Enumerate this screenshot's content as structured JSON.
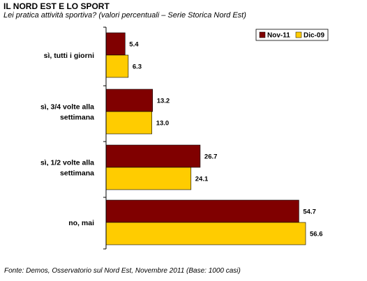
{
  "header": {
    "title": "IL NORD EST E LO SPORT",
    "subtitle": "Lei pratica attività sportiva? (valori percentuali – Serie Storica Nord Est)"
  },
  "footer": {
    "source": "Fonte: Demos, Osservatorio sul Nord Est, Novembre  2011 (Base: 1000 casi)"
  },
  "chart_data": {
    "type": "bar",
    "orientation": "horizontal",
    "title": "IL NORD EST E LO SPORT",
    "subtitle": "Lei pratica attività sportiva? (valori percentuali – Serie Storica Nord Est)",
    "categories": [
      [
        "sì, tutti i giorni"
      ],
      [
        "sì, 3/4 volte alla",
        "settimana"
      ],
      [
        "sì, 1/2 volte alla",
        "settimana"
      ],
      [
        "no, mai"
      ]
    ],
    "series": [
      {
        "name": "Nov-11",
        "color": "#800000",
        "values": [
          5.4,
          13.2,
          26.7,
          54.7
        ]
      },
      {
        "name": "Dic-09",
        "color": "#FFCC00",
        "values": [
          6.3,
          13.0,
          24.1,
          56.6
        ]
      }
    ],
    "xlim": [
      0,
      60
    ],
    "grid": false,
    "legend_position": "top-right",
    "show_data_labels": true
  }
}
